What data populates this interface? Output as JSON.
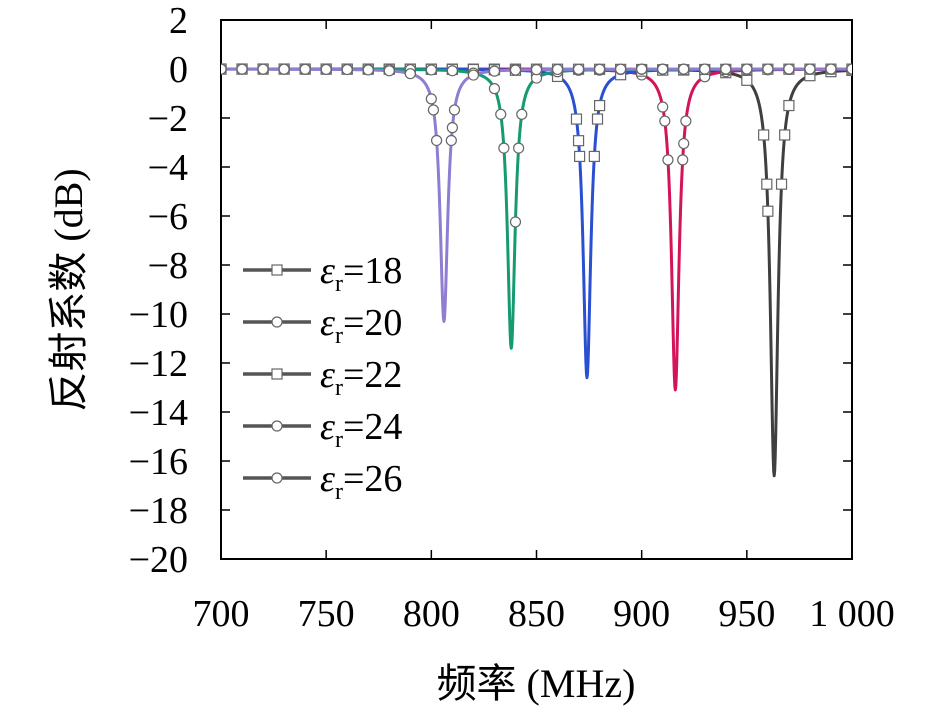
{
  "chart_data": {
    "type": "line",
    "xlabel": "频率 (MHz)",
    "ylabel": "反射系数 (dB)",
    "xlim": [
      700,
      1000
    ],
    "ylim": [
      -20,
      2
    ],
    "x_ticks": [
      700,
      750,
      800,
      850,
      900,
      950,
      1000
    ],
    "x_tick_labels": [
      "700",
      "750",
      "800",
      "850",
      "900",
      "950",
      "1 000"
    ],
    "y_ticks": [
      2,
      0,
      -2,
      -4,
      -6,
      -8,
      -10,
      -12,
      -14,
      -16,
      -18,
      -20
    ],
    "y_tick_labels": [
      "2",
      "0",
      "−2",
      "−4",
      "−6",
      "−8",
      "−10",
      "−12",
      "−14",
      "−16",
      "−18",
      "−20"
    ],
    "legend_placement": "center-left",
    "legend_prefix": "ε",
    "legend_subscript": "r",
    "series": [
      {
        "name": "=18",
        "color": "#3f3f3f",
        "marker": "square",
        "resonance_mhz": 963,
        "min_db": -16.6
      },
      {
        "name": "=20",
        "color": "#d4145a",
        "marker": "circle",
        "resonance_mhz": 916,
        "min_db": -13.1
      },
      {
        "name": "=22",
        "color": "#2a4fd1",
        "marker": "square",
        "resonance_mhz": 874,
        "min_db": -12.6
      },
      {
        "name": "=24",
        "color": "#159a72",
        "marker": "circle",
        "resonance_mhz": 838,
        "min_db": -11.4
      },
      {
        "name": "=26",
        "color": "#8e7dd1",
        "marker": "circle",
        "resonance_mhz": 806,
        "min_db": -10.3
      }
    ]
  }
}
